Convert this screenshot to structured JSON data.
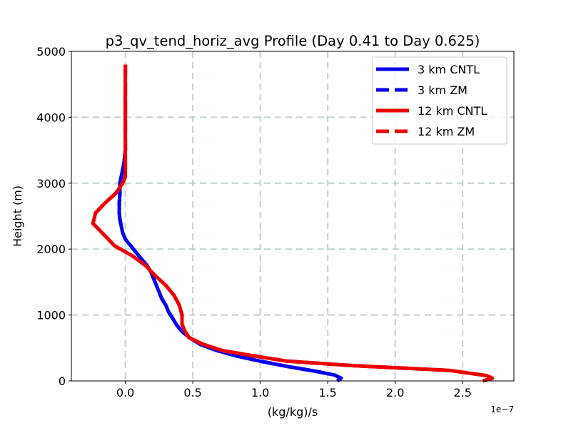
{
  "chart_data": {
    "type": "line",
    "title": "p3_qv_tend_horiz_avg Profile (Day 0.41 to Day 0.625)",
    "xlabel": "(kg/kg)/s",
    "ylabel": "Height (m)",
    "x_offset_label": "1e−7",
    "xlim": [
      -0.4,
      2.88
    ],
    "ylim": [
      0,
      5000
    ],
    "xticks": [
      0.0,
      0.5,
      1.0,
      1.5,
      2.0,
      2.5
    ],
    "xtick_labels": [
      "0.0",
      "0.5",
      "1.0",
      "1.5",
      "2.0",
      "2.5"
    ],
    "yticks": [
      0,
      1000,
      2000,
      3000,
      4000,
      5000
    ],
    "ytick_labels": [
      "0",
      "1000",
      "2000",
      "3000",
      "4000",
      "5000"
    ],
    "grid": true,
    "legend_position": "top-right",
    "series": [
      {
        "name": "3 km CNTL",
        "color": "#0000ee",
        "linestyle": "solid",
        "x": [
          1.57,
          1.6,
          1.55,
          1.4,
          1.2,
          1.0,
          0.82,
          0.68,
          0.56,
          0.48,
          0.42,
          0.38,
          0.35,
          0.32,
          0.3,
          0.27,
          0.25,
          0.22,
          0.19,
          0.16,
          0.12,
          0.08,
          0.04,
          0.0,
          -0.02,
          -0.03,
          -0.04,
          -0.045,
          -0.045,
          -0.04,
          -0.04,
          -0.03,
          -0.02,
          -0.01,
          -0.005,
          0.0,
          0.0,
          0.0,
          0.0
        ],
        "y": [
          0,
          40,
          90,
          150,
          220,
          300,
          380,
          460,
          550,
          650,
          750,
          850,
          950,
          1050,
          1150,
          1250,
          1350,
          1500,
          1650,
          1750,
          1850,
          1950,
          2050,
          2150,
          2250,
          2350,
          2450,
          2550,
          2700,
          2850,
          3000,
          3100,
          3200,
          3300,
          3400,
          3500,
          3700,
          4000,
          4800
        ]
      },
      {
        "name": "3 km ZM",
        "color": "#0000ee",
        "linestyle": "dashed",
        "x": [
          1.57,
          1.6,
          1.55,
          1.4,
          1.2,
          1.0,
          0.82,
          0.68,
          0.56,
          0.48,
          0.42,
          0.38,
          0.35,
          0.32,
          0.3,
          0.27,
          0.25,
          0.22,
          0.19,
          0.16,
          0.12,
          0.08,
          0.04,
          0.0,
          -0.02,
          -0.03,
          -0.04,
          -0.045,
          -0.045,
          -0.04,
          -0.04,
          -0.03,
          -0.02,
          -0.01,
          -0.005,
          0.0,
          0.0,
          0.0,
          0.0
        ],
        "y": [
          0,
          40,
          90,
          150,
          220,
          300,
          380,
          460,
          550,
          650,
          750,
          850,
          950,
          1050,
          1150,
          1250,
          1350,
          1500,
          1650,
          1750,
          1850,
          1950,
          2050,
          2150,
          2250,
          2350,
          2450,
          2550,
          2700,
          2850,
          3000,
          3100,
          3200,
          3300,
          3400,
          3500,
          3700,
          4000,
          4800
        ]
      },
      {
        "name": "12 km CNTL",
        "color": "#ee0000",
        "linestyle": "solid",
        "x": [
          2.65,
          2.72,
          2.68,
          2.4,
          1.7,
          1.2,
          0.95,
          0.72,
          0.57,
          0.47,
          0.44,
          0.42,
          0.42,
          0.4,
          0.36,
          0.3,
          0.22,
          0.15,
          0.05,
          -0.08,
          -0.15,
          -0.24,
          -0.22,
          -0.15,
          -0.07,
          -0.02,
          0.0,
          0.0,
          0.0,
          0.0
        ],
        "y": [
          0,
          40,
          80,
          160,
          230,
          300,
          380,
          460,
          560,
          660,
          760,
          860,
          1000,
          1150,
          1300,
          1450,
          1600,
          1750,
          1900,
          2050,
          2200,
          2390,
          2550,
          2700,
          2850,
          3000,
          3100,
          3500,
          4000,
          4800
        ]
      },
      {
        "name": "12 km ZM",
        "color": "#ee0000",
        "linestyle": "dashed",
        "x": [
          2.65,
          2.72,
          2.68,
          2.4,
          1.7,
          1.2,
          0.95,
          0.72,
          0.57,
          0.47,
          0.44,
          0.42,
          0.42,
          0.4,
          0.36,
          0.3,
          0.22,
          0.15,
          0.05,
          -0.08,
          -0.15,
          -0.24,
          -0.22,
          -0.15,
          -0.07,
          -0.02,
          0.0,
          0.0,
          0.0,
          0.0
        ],
        "y": [
          0,
          40,
          80,
          160,
          230,
          300,
          380,
          460,
          560,
          660,
          760,
          860,
          1000,
          1150,
          1300,
          1450,
          1600,
          1750,
          1900,
          2050,
          2200,
          2390,
          2550,
          2700,
          2850,
          3000,
          3100,
          3500,
          4000,
          4800
        ]
      }
    ]
  }
}
